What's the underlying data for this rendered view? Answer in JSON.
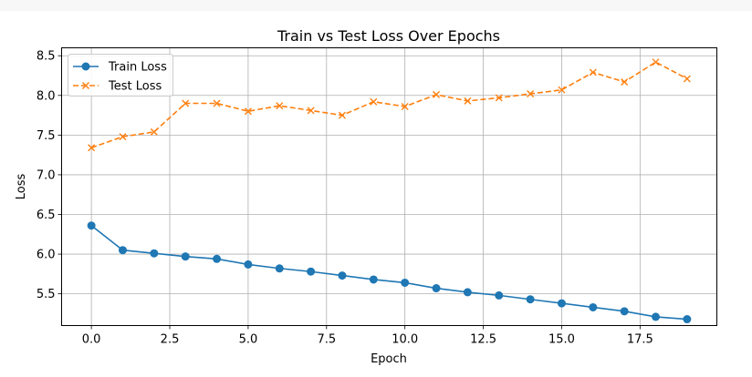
{
  "chart_data": {
    "type": "line",
    "title": "Train vs Test Loss Over Epochs",
    "xlabel": "Epoch",
    "ylabel": "Loss",
    "xlim": [
      -0.95,
      19.95
    ],
    "ylim": [
      5.1,
      8.6
    ],
    "x_ticks": [
      0.0,
      2.5,
      5.0,
      7.5,
      10.0,
      12.5,
      15.0,
      17.5
    ],
    "x_tick_labels": [
      "0.0",
      "2.5",
      "5.0",
      "7.5",
      "10.0",
      "12.5",
      "15.0",
      "17.5"
    ],
    "y_ticks": [
      5.5,
      6.0,
      6.5,
      7.0,
      7.5,
      8.0,
      8.5
    ],
    "y_tick_labels": [
      "5.5",
      "6.0",
      "6.5",
      "7.0",
      "7.5",
      "8.0",
      "8.5"
    ],
    "grid": true,
    "legend_position": "upper-left",
    "x": [
      0,
      1,
      2,
      3,
      4,
      5,
      6,
      7,
      8,
      9,
      10,
      11,
      12,
      13,
      14,
      15,
      16,
      17,
      18,
      19
    ],
    "series": [
      {
        "name": "Train Loss",
        "color": "#1f77b4",
        "marker": "circle",
        "line_style": "solid",
        "values": [
          6.36,
          6.05,
          6.01,
          5.97,
          5.94,
          5.87,
          5.82,
          5.78,
          5.73,
          5.68,
          5.64,
          5.57,
          5.52,
          5.48,
          5.43,
          5.38,
          5.33,
          5.28,
          5.21,
          5.18
        ]
      },
      {
        "name": "Test Loss",
        "color": "#ff7f0e",
        "marker": "x",
        "line_style": "dashed",
        "values": [
          7.34,
          7.48,
          7.54,
          7.9,
          7.9,
          7.8,
          7.87,
          7.81,
          7.75,
          7.92,
          7.86,
          8.01,
          7.93,
          7.97,
          8.02,
          8.07,
          8.29,
          8.17,
          8.42,
          8.21
        ]
      }
    ]
  }
}
